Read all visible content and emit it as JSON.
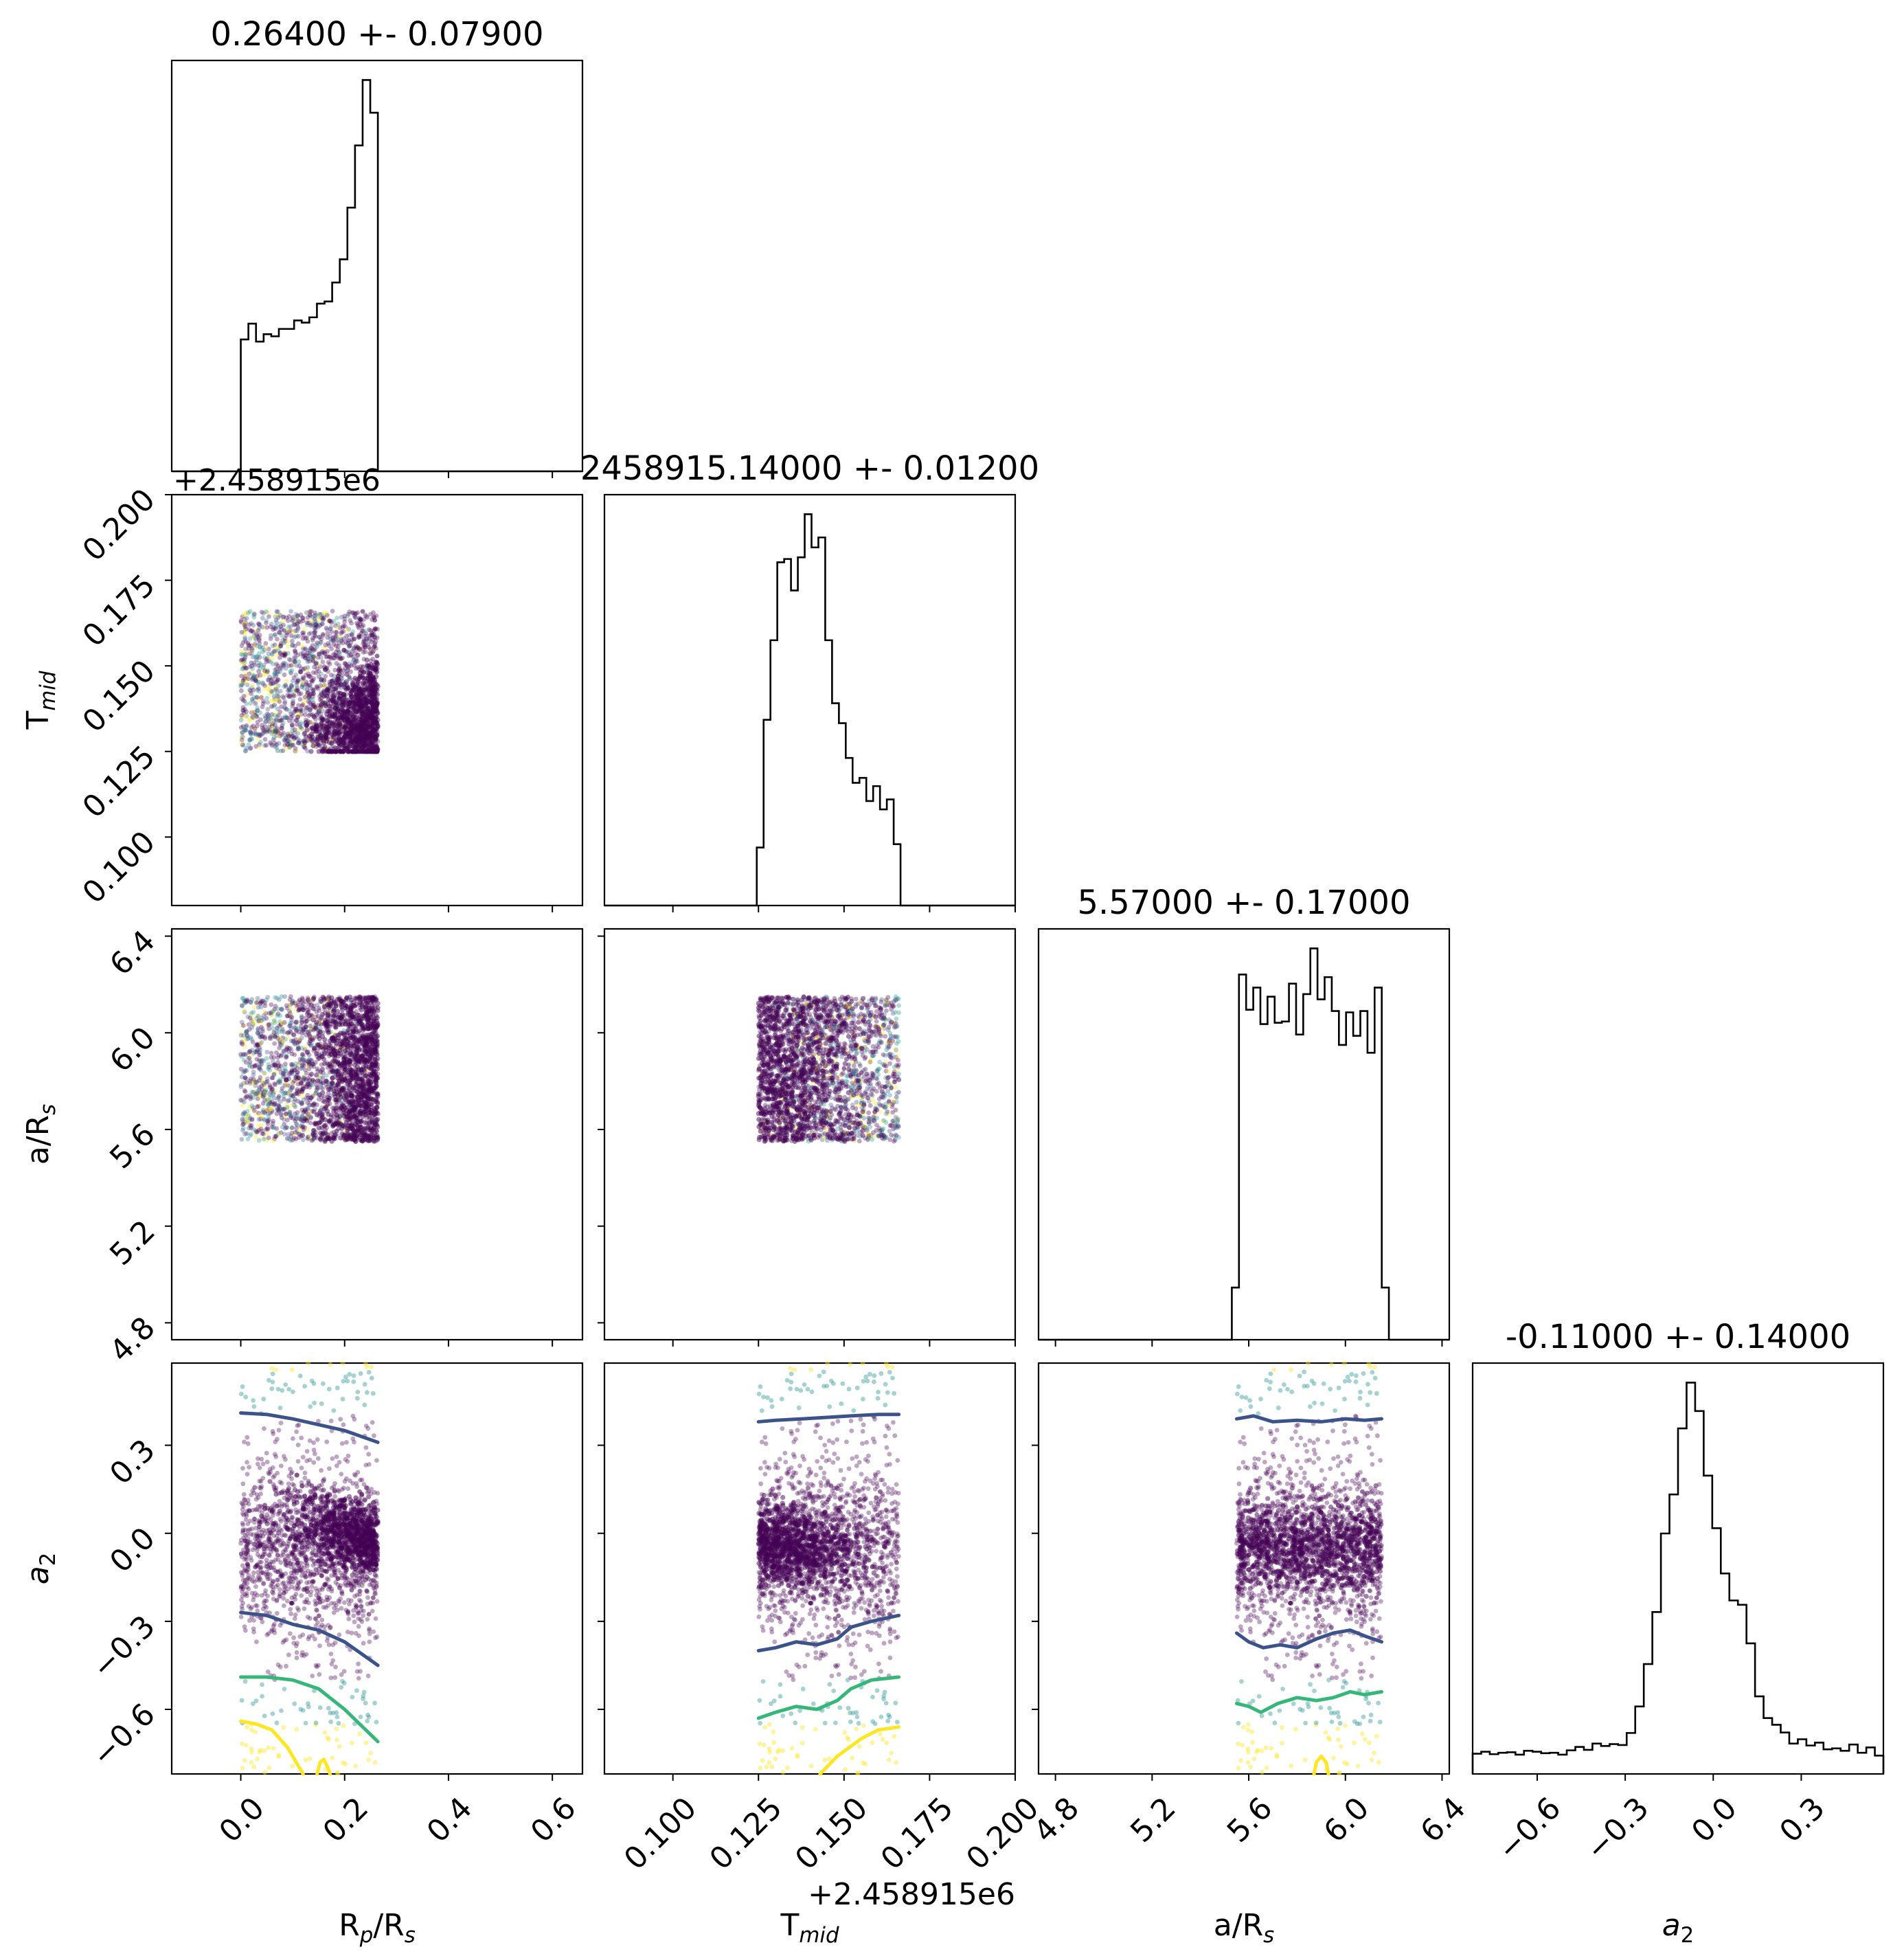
{
  "chart_data": {
    "type": "corner",
    "variables": [
      {
        "key": "rp_rs",
        "label_main": "R",
        "label_sub": "p",
        "label_rest": "/R",
        "label_sub2": "s",
        "title": "0.26400 +- 0.07900",
        "range": [
          -0.133,
          0.658
        ],
        "ticks": [
          0.0,
          0.2,
          0.4,
          0.6
        ],
        "tick_labels": [
          "0.0",
          "0.2",
          "0.4",
          "0.6"
        ],
        "offset_text": "",
        "histogram": {
          "x0": 0.0,
          "x1": 0.264,
          "counts": [
            12.5,
            14.0,
            12.3,
            13.0,
            12.8,
            13.5,
            13.5,
            14.3,
            14.1,
            14.6,
            15.9,
            16.1,
            17.9,
            20.1,
            25.0,
            30.9,
            37.1,
            34.0
          ]
        }
      },
      {
        "key": "t_mid",
        "label_main": "T",
        "label_sub": "mid",
        "label_rest": "",
        "label_sub2": "",
        "title": "2458915.14000 +- 0.01200",
        "range": [
          0.08,
          0.2
        ],
        "ticks": [
          0.1,
          0.125,
          0.15,
          0.175,
          0.2
        ],
        "tick_labels": [
          "0.100",
          "0.125",
          "0.150",
          "0.175",
          "0.200"
        ],
        "offset_text": "+2.458915e6",
        "histogram": {
          "x0": 0.1245,
          "x1": 0.1665,
          "counts": [
            3.5,
            11.2,
            16.0,
            20.7,
            20.9,
            19.0,
            21.0,
            23.6,
            21.6,
            22.2,
            16.0,
            12.2,
            11.0,
            8.9,
            7.4,
            7.7,
            6.3,
            7.2,
            5.8,
            6.4,
            3.7
          ]
        }
      },
      {
        "key": "a_rs",
        "label_main": "a/R",
        "label_sub": "s",
        "label_rest": "",
        "label_sub2": "",
        "title": "5.57000 +- 0.17000",
        "range": [
          4.73,
          6.43
        ],
        "ticks": [
          4.8,
          5.2,
          5.6,
          6.0,
          6.4
        ],
        "tick_labels": [
          "4.8",
          "5.2",
          "5.6",
          "6.0",
          "6.4"
        ],
        "offset_text": "",
        "histogram": {
          "x0": 5.53,
          "x1": 6.18,
          "counts": [
            4.0,
            28.0,
            25.3,
            27.0,
            24.2,
            26.3,
            24.3,
            24.4,
            27.3,
            23.4,
            26.5,
            30.0,
            26.1,
            27.8,
            25.2,
            22.6,
            25.1,
            23.3,
            25.2,
            22.0,
            27.0,
            4.0
          ]
        }
      },
      {
        "key": "a2",
        "label_main": "a",
        "label_sub": "2",
        "label_rest": "",
        "label_sub2": "",
        "label_italic": true,
        "title": "-0.11000 +- 0.14000",
        "range": [
          -0.82,
          0.58
        ],
        "ticks": [
          -0.6,
          -0.3,
          0.0,
          0.3
        ],
        "tick_labels": [
          "−0.6",
          "−0.3",
          "0.0",
          "0.3"
        ],
        "offset_text": "",
        "histogram": {
          "x0": -0.82,
          "x1": 0.58,
          "counts": [
            4.2,
            4.6,
            4.1,
            4.4,
            4.5,
            4.0,
            4.8,
            4.6,
            4.3,
            4.4,
            4.0,
            4.9,
            5.6,
            5.0,
            6.3,
            5.8,
            6.2,
            6.0,
            8.5,
            14.0,
            22.8,
            33.6,
            49.9,
            58.0,
            71.7,
            81.2,
            75.3,
            61.9,
            51.0,
            41.6,
            36.0,
            35.1,
            27.1,
            16.1,
            11.6,
            10.2,
            8.6,
            6.3,
            7.2,
            5.9,
            6.5,
            5.1,
            5.3,
            4.8,
            6.1,
            4.4,
            5.5,
            3.8
          ]
        }
      }
    ],
    "scatter_panels": [
      {
        "x": "rp_rs",
        "y": "t_mid",
        "x_range": [
          0.0,
          0.264
        ],
        "y_range": [
          0.125,
          0.166
        ],
        "dense_side": "right"
      },
      {
        "x": "rp_rs",
        "y": "a_rs",
        "x_range": [
          0.0,
          0.264
        ],
        "y_range": [
          5.55,
          6.15
        ],
        "dense_side": "right"
      },
      {
        "x": "t_mid",
        "y": "a_rs",
        "x_range": [
          0.125,
          0.166
        ],
        "y_range": [
          5.55,
          6.15
        ],
        "dense_side": "left"
      },
      {
        "x": "rp_rs",
        "y": "a2",
        "x_range": [
          0.0,
          0.264
        ],
        "y_range": [
          -0.82,
          0.58
        ],
        "dense_side": "right"
      },
      {
        "x": "t_mid",
        "y": "a2",
        "x_range": [
          0.125,
          0.166
        ],
        "y_range": [
          -0.82,
          0.58
        ],
        "dense_side": "left"
      },
      {
        "x": "a_rs",
        "y": "a2",
        "x_range": [
          5.55,
          6.15
        ],
        "y_range": [
          -0.82,
          0.58
        ],
        "dense_side": "none"
      }
    ],
    "contours": [
      {
        "panel": "rp_rs-a2",
        "level": "outer",
        "color": "#3b528b",
        "points": [
          [
            0.0,
            0.41
          ],
          [
            0.05,
            0.405
          ],
          [
            0.1,
            0.39
          ],
          [
            0.15,
            0.37
          ],
          [
            0.2,
            0.35
          ],
          [
            0.264,
            0.31
          ]
        ]
      },
      {
        "panel": "rp_rs-a2",
        "level": "outer",
        "color": "#3b528b",
        "points": [
          [
            0.0,
            -0.27
          ],
          [
            0.05,
            -0.28
          ],
          [
            0.1,
            -0.31
          ],
          [
            0.15,
            -0.33
          ],
          [
            0.2,
            -0.37
          ],
          [
            0.264,
            -0.45
          ]
        ]
      },
      {
        "panel": "rp_rs-a2",
        "level": "mid",
        "color": "#35b779",
        "points": [
          [
            0.0,
            -0.49
          ],
          [
            0.05,
            -0.49
          ],
          [
            0.1,
            -0.5
          ],
          [
            0.15,
            -0.53
          ],
          [
            0.2,
            -0.6
          ],
          [
            0.264,
            -0.71
          ]
        ]
      },
      {
        "panel": "rp_rs-a2",
        "level": "inner",
        "color": "#fde725",
        "points": [
          [
            0.0,
            -0.64
          ],
          [
            0.03,
            -0.65
          ],
          [
            0.06,
            -0.67
          ],
          [
            0.09,
            -0.73
          ],
          [
            0.12,
            -0.82
          ]
        ]
      },
      {
        "panel": "rp_rs-a2",
        "level": "inner",
        "color": "#fde725",
        "points": [
          [
            0.147,
            -0.82
          ],
          [
            0.153,
            -0.78
          ],
          [
            0.16,
            -0.77
          ],
          [
            0.168,
            -0.8
          ],
          [
            0.172,
            -0.82
          ]
        ]
      },
      {
        "panel": "t_mid-a2",
        "level": "outer",
        "color": "#3b528b",
        "points": [
          [
            0.125,
            0.38
          ],
          [
            0.13,
            0.385
          ],
          [
            0.138,
            0.39
          ],
          [
            0.145,
            0.395
          ],
          [
            0.152,
            0.4
          ],
          [
            0.16,
            0.405
          ],
          [
            0.166,
            0.405
          ]
        ]
      },
      {
        "panel": "t_mid-a2",
        "level": "outer",
        "color": "#3b528b",
        "points": [
          [
            0.125,
            -0.4
          ],
          [
            0.13,
            -0.39
          ],
          [
            0.136,
            -0.37
          ],
          [
            0.142,
            -0.38
          ],
          [
            0.148,
            -0.36
          ],
          [
            0.152,
            -0.32
          ],
          [
            0.158,
            -0.3
          ],
          [
            0.166,
            -0.28
          ]
        ]
      },
      {
        "panel": "t_mid-a2",
        "level": "mid",
        "color": "#35b779",
        "points": [
          [
            0.125,
            -0.63
          ],
          [
            0.13,
            -0.61
          ],
          [
            0.136,
            -0.59
          ],
          [
            0.142,
            -0.6
          ],
          [
            0.148,
            -0.57
          ],
          [
            0.152,
            -0.53
          ],
          [
            0.158,
            -0.5
          ],
          [
            0.166,
            -0.49
          ]
        ]
      },
      {
        "panel": "t_mid-a2",
        "level": "inner",
        "color": "#fde725",
        "points": [
          [
            0.143,
            -0.82
          ],
          [
            0.148,
            -0.76
          ],
          [
            0.155,
            -0.7
          ],
          [
            0.16,
            -0.67
          ],
          [
            0.166,
            -0.66
          ]
        ]
      },
      {
        "panel": "a_rs-a2",
        "level": "outer",
        "color": "#3b528b",
        "points": [
          [
            5.55,
            0.39
          ],
          [
            5.62,
            0.4
          ],
          [
            5.7,
            0.38
          ],
          [
            5.8,
            0.385
          ],
          [
            5.9,
            0.38
          ],
          [
            6.0,
            0.39
          ],
          [
            6.08,
            0.385
          ],
          [
            6.15,
            0.39
          ]
        ]
      },
      {
        "panel": "a_rs-a2",
        "level": "outer",
        "color": "#3b528b",
        "points": [
          [
            5.55,
            -0.34
          ],
          [
            5.6,
            -0.37
          ],
          [
            5.66,
            -0.39
          ],
          [
            5.73,
            -0.38
          ],
          [
            5.8,
            -0.39
          ],
          [
            5.88,
            -0.36
          ],
          [
            5.95,
            -0.34
          ],
          [
            6.02,
            -0.33
          ],
          [
            6.08,
            -0.35
          ],
          [
            6.15,
            -0.37
          ]
        ]
      },
      {
        "panel": "a_rs-a2",
        "level": "mid",
        "color": "#35b779",
        "points": [
          [
            5.55,
            -0.58
          ],
          [
            5.6,
            -0.59
          ],
          [
            5.65,
            -0.61
          ],
          [
            5.72,
            -0.58
          ],
          [
            5.8,
            -0.56
          ],
          [
            5.88,
            -0.57
          ],
          [
            5.95,
            -0.56
          ],
          [
            6.02,
            -0.54
          ],
          [
            6.08,
            -0.55
          ],
          [
            6.15,
            -0.54
          ]
        ]
      },
      {
        "panel": "a_rs-a2",
        "level": "inner",
        "color": "#fde725",
        "points": [
          [
            5.87,
            -0.82
          ],
          [
            5.88,
            -0.78
          ],
          [
            5.9,
            -0.76
          ],
          [
            5.92,
            -0.78
          ],
          [
            5.93,
            -0.82
          ]
        ]
      }
    ],
    "colors": {
      "histogram_line": "#000000",
      "dense_points": "#440154",
      "mid_points": "#3b528b",
      "sparse_points": "#21918c",
      "edge_points": "#fde725",
      "axes": "#000000"
    },
    "grid": false,
    "legend": "none"
  }
}
